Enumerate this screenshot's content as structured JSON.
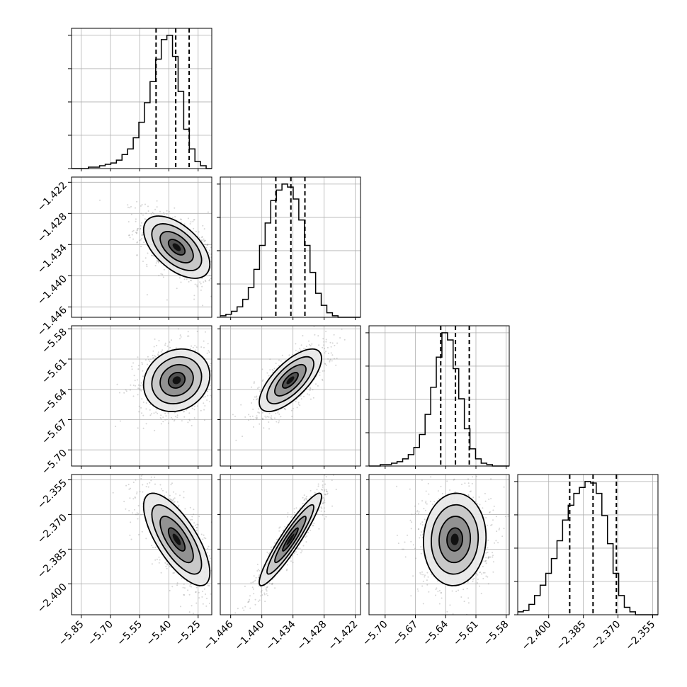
{
  "chart_data": {
    "type": "corner",
    "parameters": 4,
    "grid": true,
    "axes": [
      {
        "range": [
          -5.9,
          -5.18
        ],
        "ticks": [
          -5.85,
          -5.7,
          -5.55,
          -5.4,
          -5.25
        ],
        "tick_labels": [
          "−5.85",
          "−5.70",
          "−5.55",
          "−5.40",
          "−5.25"
        ]
      },
      {
        "range": [
          -1.448,
          -1.421
        ],
        "ticks": [
          -1.446,
          -1.44,
          -1.434,
          -1.428,
          -1.422
        ],
        "tick_labels": [
          "−1.446",
          "−1.440",
          "−1.434",
          "−1.428",
          "−1.422"
        ]
      },
      {
        "range": [
          -5.716,
          -5.577
        ],
        "ticks": [
          -5.7,
          -5.67,
          -5.64,
          -5.61,
          -5.58
        ],
        "tick_labels": [
          "−5.70",
          "−5.67",
          "−5.64",
          "−5.61",
          "−5.58"
        ]
      },
      {
        "range": [
          -2.4134,
          -2.3527
        ],
        "ticks": [
          -2.4,
          -2.385,
          -2.37,
          -2.355
        ],
        "tick_labels": [
          "−2.400",
          "−2.385",
          "−2.370",
          "−2.355"
        ]
      }
    ],
    "marginals": [
      {
        "param": 0,
        "bin_edges": [
          -5.9,
          -5.18
        ],
        "counts": [
          0,
          0,
          0,
          1,
          1,
          2,
          3,
          4,
          6,
          10,
          14,
          22,
          33,
          47,
          62,
          78,
          92,
          95,
          80,
          55,
          28,
          14,
          5,
          2,
          0
        ],
        "quantiles": [
          -5.466,
          -5.365,
          -5.296
        ]
      },
      {
        "param": 1,
        "bin_edges": [
          -1.448,
          -1.421
        ],
        "counts": [
          1,
          2,
          4,
          7,
          12,
          20,
          32,
          48,
          63,
          78,
          85,
          89,
          87,
          79,
          65,
          48,
          30,
          16,
          8,
          3,
          1,
          0,
          0,
          0,
          0
        ],
        "quantiles": [
          -1.4373,
          -1.4344,
          -1.4317
        ]
      },
      {
        "param": 2,
        "bin_edges": [
          -5.716,
          -5.577
        ],
        "counts": [
          0,
          0,
          1,
          1,
          2,
          3,
          5,
          8,
          13,
          22,
          36,
          55,
          76,
          93,
          88,
          68,
          47,
          26,
          12,
          5,
          2,
          1,
          0,
          0,
          0
        ],
        "quantiles": [
          -5.6449,
          -5.6303,
          -5.6166
        ]
      },
      {
        "param": 3,
        "bin_edges": [
          -2.4134,
          -2.3527
        ],
        "counts": [
          2,
          3,
          7,
          13,
          20,
          28,
          38,
          50,
          64,
          74,
          82,
          86,
          90,
          89,
          82,
          67,
          48,
          28,
          13,
          5,
          2,
          0,
          0,
          0,
          0
        ],
        "quantiles": [
          -2.3909,
          -2.3808,
          -2.3707
        ]
      }
    ],
    "pairs": [
      {
        "x": 0,
        "y": 1,
        "mean": [
          -5.36,
          -1.4345
        ],
        "sd": [
          0.085,
          0.003
        ],
        "corr": -0.55
      },
      {
        "x": 0,
        "y": 2,
        "mean": [
          -5.36,
          -5.631
        ],
        "sd": [
          0.085,
          0.0155
        ],
        "corr": 0.15
      },
      {
        "x": 1,
        "y": 2,
        "mean": [
          -1.4345,
          -5.631
        ],
        "sd": [
          0.003,
          0.0155
        ],
        "corr": 0.7
      },
      {
        "x": 0,
        "y": 3,
        "mean": [
          -5.36,
          -2.3808
        ],
        "sd": [
          0.085,
          0.01
        ],
        "corr": -0.72
      },
      {
        "x": 1,
        "y": 3,
        "mean": [
          -1.4345,
          -2.3808
        ],
        "sd": [
          0.003,
          0.01
        ],
        "corr": 0.93
      },
      {
        "x": 2,
        "y": 3,
        "mean": [
          -5.631,
          -2.3808
        ],
        "sd": [
          0.0155,
          0.01
        ],
        "corr": 0.05
      }
    ],
    "contour_levels_sigma": [
      0.5,
      1.0,
      1.5,
      2.0
    ]
  }
}
